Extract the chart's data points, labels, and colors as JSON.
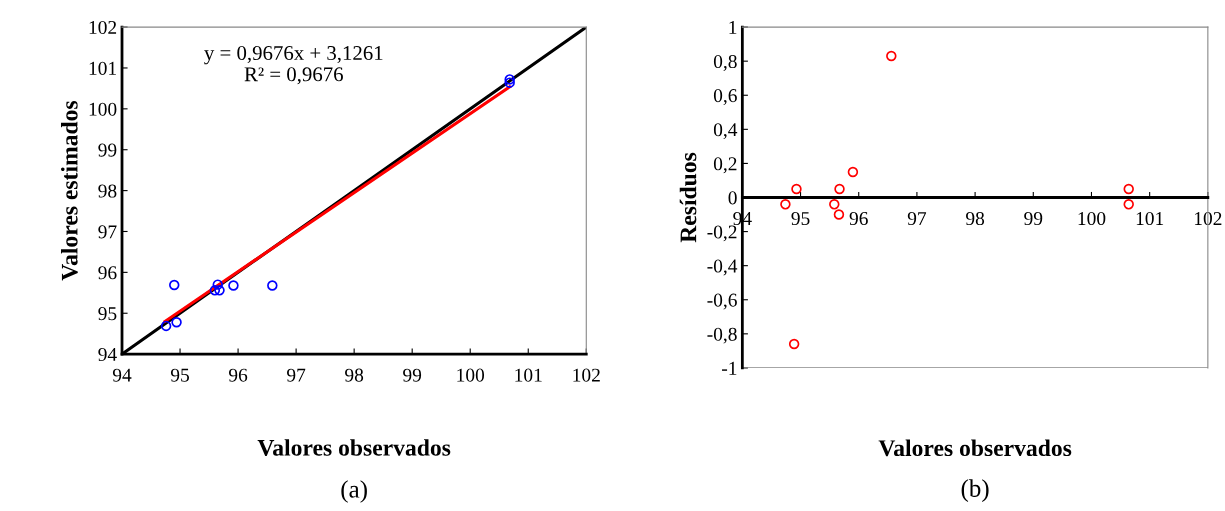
{
  "chart_data": [
    {
      "type": "scatter",
      "xlabel": "Valores observados",
      "ylabel": "Valores estimados",
      "annotations": [
        "y = 0,9676x + 3,1261",
        "R² = 0,9676",
        "(a)"
      ],
      "xlim": [
        94,
        102
      ],
      "ylim": [
        94,
        102
      ],
      "xticks": [
        94,
        95,
        96,
        97,
        98,
        99,
        100,
        101,
        102
      ],
      "yticks": [
        94,
        95,
        96,
        97,
        98,
        99,
        100,
        101,
        102
      ],
      "series": [
        {
          "marker": "circle",
          "color": "#0000ff",
          "x": [
            94.9,
            94.76,
            94.94,
            95.65,
            95.6,
            95.68,
            95.92,
            96.59,
            100.68,
            100.68
          ],
          "values": [
            95.69,
            94.69,
            94.78,
            95.7,
            95.56,
            95.56,
            95.68,
            95.68,
            100.72,
            100.64
          ]
        },
        {
          "type": "line",
          "color": "#000000",
          "x": [
            94,
            102
          ],
          "values": [
            94,
            102
          ]
        },
        {
          "type": "line",
          "color": "#ff0000",
          "x": [
            94.74,
            100.68
          ],
          "values": [
            94.8,
            100.54
          ]
        }
      ]
    },
    {
      "type": "scatter",
      "xlabel": "Valores observados",
      "ylabel": "Resíduos",
      "annotations": [
        "(b)"
      ],
      "xlim": [
        94,
        102
      ],
      "ylim": [
        -1,
        1
      ],
      "xticks": [
        94,
        95,
        96,
        97,
        98,
        99,
        100,
        101,
        102
      ],
      "yticks": [
        {
          "value": -1,
          "label": "-1"
        },
        {
          "value": -0.8,
          "label": "-0,8"
        },
        {
          "value": -0.6,
          "label": "-0,6"
        },
        {
          "value": -0.4,
          "label": "-0,4"
        },
        {
          "value": -0.2,
          "label": "-0,2"
        },
        {
          "value": 0,
          "label": "0"
        },
        {
          "value": 0.2,
          "label": "0,2"
        },
        {
          "value": 0.4,
          "label": "0,4"
        },
        {
          "value": 0.6,
          "label": "0,6"
        },
        {
          "value": 0.8,
          "label": "0,8"
        },
        {
          "value": 1,
          "label": "1"
        }
      ],
      "series": [
        {
          "marker": "circle",
          "color": "#ff0000",
          "x": [
            94.74,
            94.93,
            95.58,
            95.67,
            95.66,
            95.9,
            96.56,
            94.89,
            100.64,
            100.64
          ],
          "values": [
            -0.04,
            0.05,
            -0.04,
            0.05,
            -0.1,
            0.15,
            0.83,
            -0.86,
            0.05,
            -0.04
          ]
        }
      ]
    }
  ]
}
